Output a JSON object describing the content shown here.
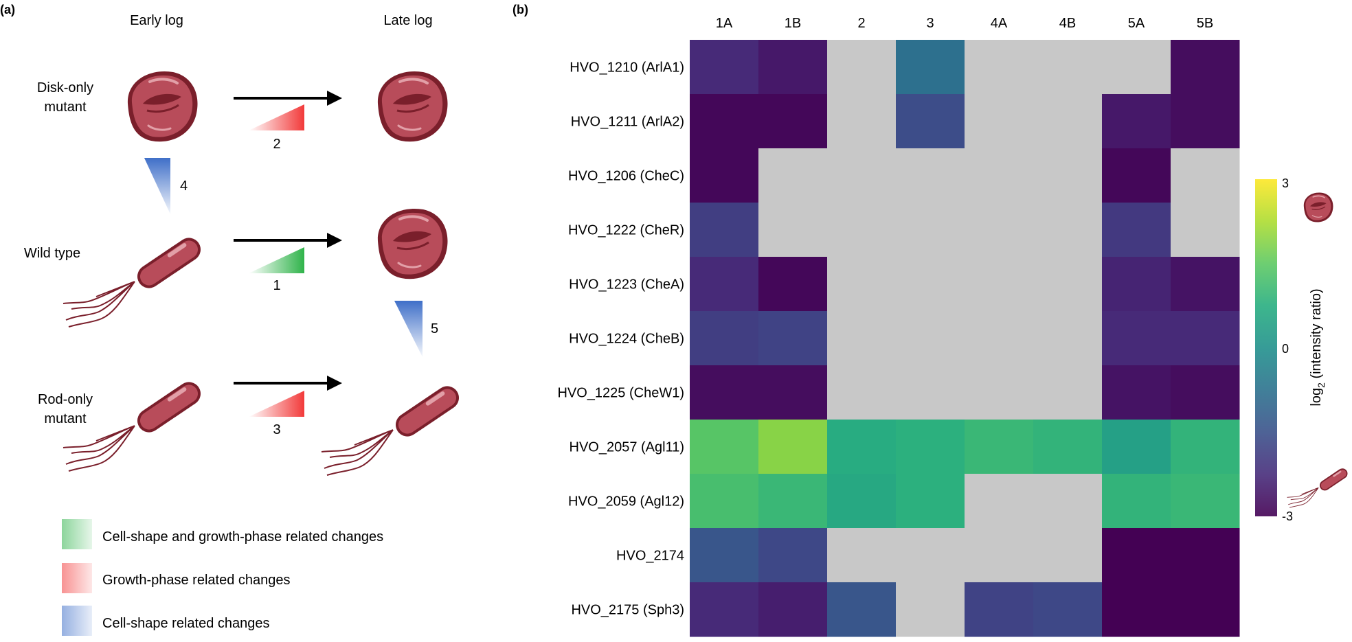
{
  "panel_a": {
    "label": "(a)",
    "col_early": "Early log",
    "col_late": "Late log",
    "row_disk_line1": "Disk-only",
    "row_disk_line2": "mutant",
    "row_wild": "Wild type",
    "row_rod_line1": "Rod-only",
    "row_rod_line2": "mutant",
    "comparisons": [
      {
        "number": "1",
        "kind": "shape-growth"
      },
      {
        "number": "2",
        "kind": "growth"
      },
      {
        "number": "3",
        "kind": "growth"
      },
      {
        "number": "4",
        "kind": "shape"
      },
      {
        "number": "5",
        "kind": "shape"
      }
    ],
    "legend": [
      {
        "label": "Cell-shape and growth-phase related changes",
        "color": "#2fb34a"
      },
      {
        "label": "Growth-phase related changes",
        "color": "#f23a3a"
      },
      {
        "label": "Cell-shape related changes",
        "color": "#3f6fc8"
      }
    ],
    "colors": {
      "cell_body": "#b84c5a",
      "cell_dark": "#7a1f2b",
      "cell_light": "#e2a0a8"
    }
  },
  "panel_b": {
    "label": "(b)"
  },
  "chart_data": {
    "type": "heatmap",
    "columns": [
      "1A",
      "1B",
      "2",
      "3",
      "4A",
      "4B",
      "5A",
      "5B"
    ],
    "rows": [
      "HVO_1210 (ArlA1)",
      "HVO_1211 (ArlA2)",
      "HVO_1206 (CheC)",
      "HVO_1222 (CheR)",
      "HVO_1223 (CheA)",
      "HVO_1224 (CheB)",
      "HVO_1225 (CheW1)",
      "HVO_2057 (Agl11)",
      "HVO_2059 (Agl12)",
      "HVO_2174",
      "HVO_2175 (Sph3)"
    ],
    "values": [
      [
        -2.3,
        -2.6,
        null,
        -0.8,
        null,
        null,
        null,
        -2.8
      ],
      [
        -2.9,
        -2.9,
        null,
        -1.6,
        null,
        null,
        -2.6,
        -2.8
      ],
      [
        -2.9,
        null,
        null,
        null,
        null,
        null,
        -2.9,
        null
      ],
      [
        -1.9,
        null,
        null,
        null,
        null,
        null,
        -2.0,
        null
      ],
      [
        -2.3,
        -2.9,
        null,
        null,
        null,
        null,
        -2.4,
        -2.7
      ],
      [
        -1.9,
        -1.8,
        null,
        null,
        null,
        null,
        -2.3,
        -2.3
      ],
      [
        -2.8,
        -2.8,
        null,
        null,
        null,
        null,
        -2.7,
        -2.8
      ],
      [
        1.4,
        1.9,
        0.7,
        0.8,
        1.0,
        0.9,
        0.4,
        0.9
      ],
      [
        1.2,
        1.0,
        0.6,
        0.8,
        null,
        null,
        0.9,
        1.0
      ],
      [
        -1.4,
        -1.7,
        null,
        null,
        null,
        null,
        -3.0,
        -3.0
      ],
      [
        -2.3,
        -2.5,
        -1.4,
        null,
        -1.8,
        -1.7,
        -3.0,
        -3.0
      ]
    ],
    "missing_color": "#c8c8c8",
    "colorbar": {
      "min": -3,
      "max": 3,
      "ticks": [
        "3",
        "0",
        "-3"
      ],
      "label": "log",
      "label_sub": "2",
      "label_rest": " (intensity ratio)"
    },
    "colormap": "viridis"
  }
}
